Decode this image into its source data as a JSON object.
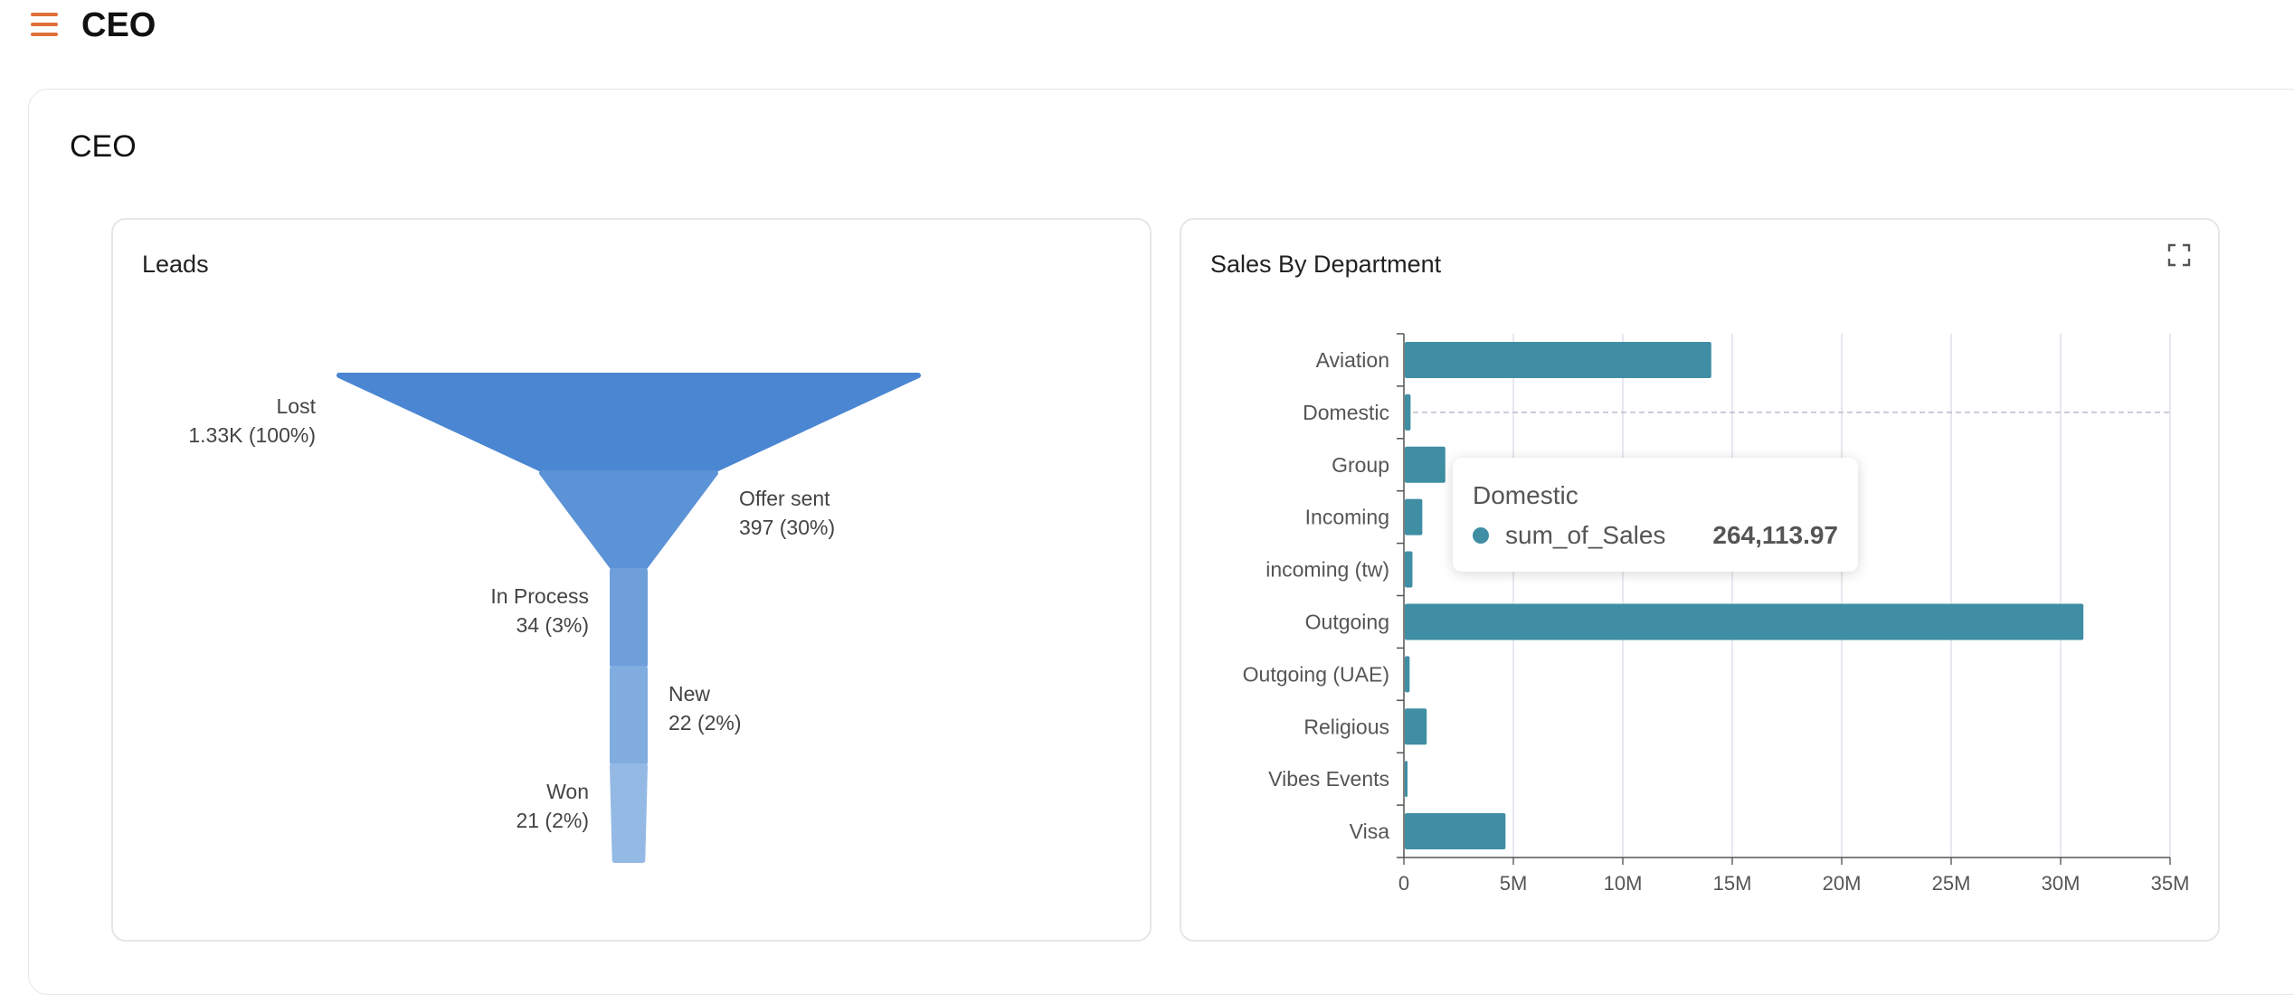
{
  "header": {
    "app_title": "CEO",
    "menu_icon": "hamburger-menu-icon",
    "accent_color": "#e0703a"
  },
  "page": {
    "title": "CEO"
  },
  "leads_panel": {
    "title": "Leads"
  },
  "sales_panel": {
    "title": "Sales By Department",
    "expand_icon": "fullscreen-icon"
  },
  "tooltip": {
    "title": "Domestic",
    "series": "sum_of_Sales",
    "value": "264,113.97"
  },
  "chart_data": [
    {
      "type": "funnel",
      "stages": [
        {
          "label": "Lost",
          "value_text": "1.33K (100%)",
          "value": 1330,
          "percent": 100,
          "color": "#4a86d1"
        },
        {
          "label": "Offer sent",
          "value_text": "397 (30%)",
          "value": 397,
          "percent": 30,
          "color": "#5c93d6"
        },
        {
          "label": "In Process",
          "value_text": "34 (3%)",
          "value": 34,
          "percent": 3,
          "color": "#6e9fda"
        },
        {
          "label": "New",
          "value_text": "22 (2%)",
          "value": 22,
          "percent": 2,
          "color": "#80acdf"
        },
        {
          "label": "Won",
          "value_text": "21 (2%)",
          "value": 21,
          "percent": 2,
          "color": "#93b9e4"
        }
      ]
    },
    {
      "type": "bar",
      "orientation": "horizontal",
      "categories": [
        "Aviation",
        "Domestic",
        "Group",
        "Incoming",
        "incoming (tw)",
        "Outgoing",
        "Outgoing (UAE)",
        "Religious",
        "Vibes Events",
        "Visa"
      ],
      "series": [
        {
          "name": "sum_of_Sales",
          "color": "#3f8ea3",
          "values": [
            14000000,
            264113.97,
            1850000,
            800000,
            350000,
            31000000,
            220000,
            1000000,
            90000,
            4600000
          ]
        }
      ],
      "xlim": [
        0,
        35000000
      ],
      "xticks": [
        "0",
        "5M",
        "10M",
        "15M",
        "20M",
        "25M",
        "30M",
        "35M"
      ],
      "xtick_values": [
        0,
        5000000,
        10000000,
        15000000,
        20000000,
        25000000,
        30000000,
        35000000
      ],
      "grid": true,
      "highlighted_category": "Domestic"
    }
  ]
}
